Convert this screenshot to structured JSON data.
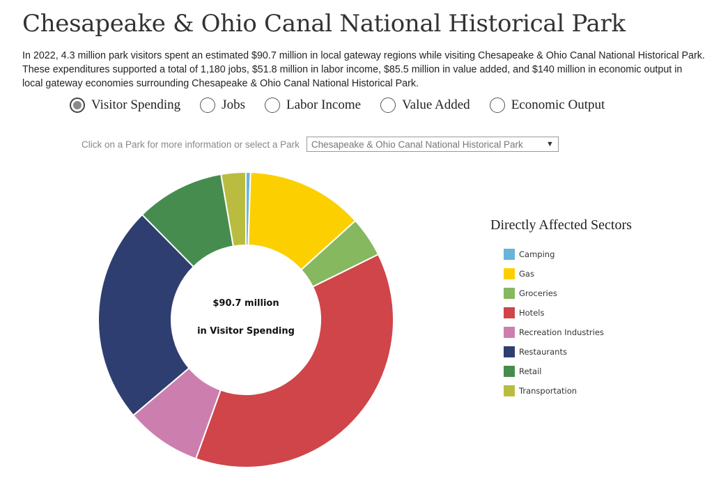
{
  "page": {
    "title": "Chesapeake & Ohio Canal National Historical Park",
    "description": "In 2022, 4.3 million park visitors spent an estimated $90.7 million in local gateway regions while visiting Chesapeake & Ohio Canal National Historical Park. These expenditures supported a total of 1,180 jobs, $51.8 million in labor income, $85.5 million in value added, and $140 million in economic output in local gateway economies surrounding Chesapeake & Ohio Canal National Historical Park."
  },
  "metric_options": [
    {
      "label": "Visitor Spending",
      "selected": true
    },
    {
      "label": "Jobs",
      "selected": false
    },
    {
      "label": "Labor Income",
      "selected": false
    },
    {
      "label": "Value Added",
      "selected": false
    },
    {
      "label": "Economic Output",
      "selected": false
    }
  ],
  "park_select": {
    "prompt": "Click on a Park for more information or select a Park",
    "selected": "Chesapeake & Ohio Canal National Historical Park"
  },
  "chart_data": {
    "type": "pie",
    "center_value": "$90.7 million",
    "center_label": "in Visitor Spending",
    "legend_title": "Directly Affected Sectors",
    "legend_position": "right",
    "slices": [
      {
        "name": "Camping",
        "share": 0.5,
        "color": "#6ab4d8"
      },
      {
        "name": "Gas",
        "share": 12.8,
        "color": "#fcd000"
      },
      {
        "name": "Groceries",
        "share": 4.4,
        "color": "#86b860"
      },
      {
        "name": "Hotels",
        "share": 37.8,
        "color": "#cf4549"
      },
      {
        "name": "Recreation Industries",
        "share": 8.3,
        "color": "#cc7faf"
      },
      {
        "name": "Restaurants",
        "share": 23.8,
        "color": "#2f3e70"
      },
      {
        "name": "Retail",
        "share": 9.7,
        "color": "#478c4f"
      },
      {
        "name": "Transportation",
        "share": 2.7,
        "color": "#babc40"
      }
    ]
  }
}
